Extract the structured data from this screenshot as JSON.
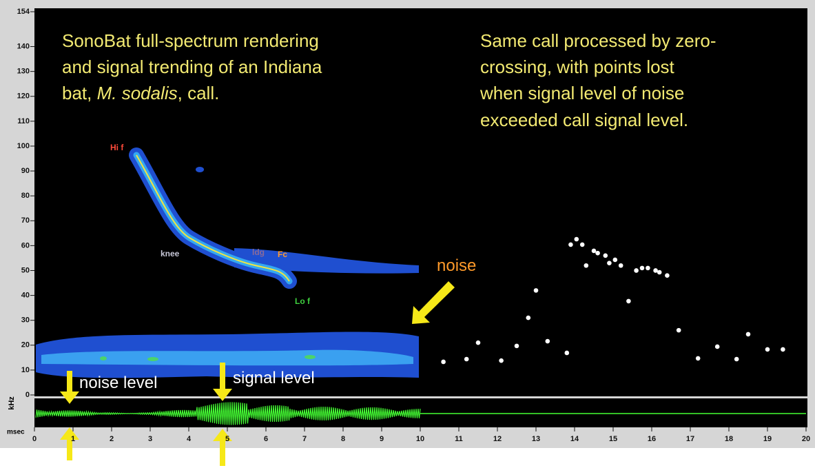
{
  "chart_data": {
    "type": "scatter",
    "title_left": [
      "SonoBat full-spectrum rendering",
      "and signal trending of an Indiana",
      [
        "bat, ",
        "M. sodalis",
        ", call."
      ]
    ],
    "title_right": [
      "Same call processed by zero-",
      "crossing, with points lost",
      "when signal level of noise",
      "exceeded call signal level."
    ],
    "labels": {
      "hi_f": "Hi f",
      "knee": "knee",
      "ldg": "ldg",
      "fc": "Fc",
      "lo_f": "Lo f",
      "noise": "noise",
      "noise_level": "noise level",
      "signal_level": "signal level"
    },
    "xlabel": "msec",
    "ylabel": "kHz",
    "xlim": [
      0,
      20
    ],
    "xticks": [
      0,
      1,
      2,
      3,
      4,
      5,
      6,
      7,
      8,
      9,
      10,
      11,
      12,
      13,
      14,
      15,
      16,
      17,
      18,
      19,
      20
    ],
    "ylim": [
      0,
      154
    ],
    "yticks": [
      0,
      10,
      20,
      30,
      40,
      50,
      60,
      70,
      80,
      90,
      100,
      110,
      120,
      130,
      140,
      154
    ],
    "color": "#ffffff",
    "x": [
      10.6,
      11.2,
      11.5,
      12.1,
      12.5,
      12.8,
      13.0,
      13.3,
      13.8,
      13.9,
      14.05,
      14.2,
      14.3,
      14.5,
      14.6,
      14.8,
      14.9,
      15.05,
      15.2,
      15.4,
      15.6,
      15.75,
      15.9,
      16.1,
      16.2,
      16.4,
      16.7,
      17.2,
      17.7,
      18.2,
      18.5,
      19.0,
      19.4
    ],
    "values": [
      13.3,
      14.4,
      21,
      13.8,
      19.7,
      31,
      42,
      21.6,
      16.9,
      60.4,
      62.6,
      60.4,
      52,
      57.9,
      57,
      56,
      53,
      54.3,
      52,
      37.7,
      50,
      51,
      51,
      50,
      49.3,
      48,
      26,
      14.7,
      19.4,
      14.4,
      24.4,
      18.3,
      18.3
    ]
  }
}
